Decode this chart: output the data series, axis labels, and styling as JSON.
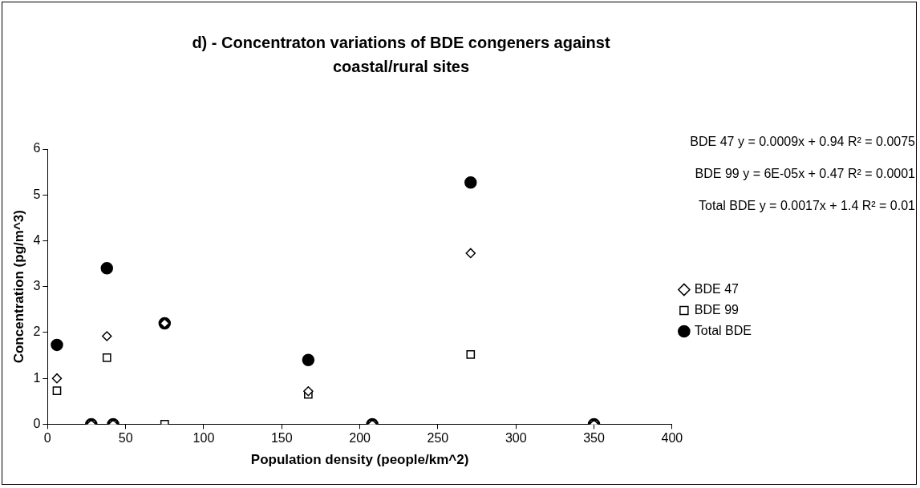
{
  "chart_data": {
    "type": "scatter",
    "title": "d) - Concentraton variations of BDE congeners against coastal/rural sites",
    "xlabel": "Population density (people/km^2)",
    "ylabel": "Concentration (pg/m^3)",
    "x": [
      6,
      28,
      38,
      42,
      75,
      167,
      208,
      271,
      350
    ],
    "series": [
      {
        "name": "BDE 47",
        "color": "#000000",
        "marker": "diamond",
        "values": [
          1.0,
          0,
          1.92,
          0,
          2.2,
          0.72,
          0,
          3.73,
          0
        ]
      },
      {
        "name": "BDE 99",
        "color": "#000000",
        "marker": "square",
        "values": [
          0.73,
          0,
          1.45,
          0,
          0,
          0.65,
          0,
          1.52,
          0
        ]
      },
      {
        "name": "Total BDE",
        "color": "#000000",
        "marker": "circle",
        "values": [
          1.73,
          0,
          3.4,
          0,
          2.2,
          1.4,
          0,
          5.27,
          0
        ]
      }
    ],
    "annotations": [
      "BDE 47 y = 0.0009x + 0.94 R² = 0.0075",
      "BDE 99 y = 6E-05x + 0.47 R² = 0.0001",
      "Total BDE y = 0.0017x + 1.4 R² = 0.01"
    ],
    "xlim": [
      0,
      400
    ],
    "xticks": [
      0,
      50,
      100,
      150,
      200,
      250,
      300,
      350,
      400
    ],
    "ylim": [
      0,
      6
    ],
    "yticks": [
      0,
      1,
      2,
      3,
      4,
      5,
      6
    ],
    "grid": false,
    "legend": "right"
  }
}
